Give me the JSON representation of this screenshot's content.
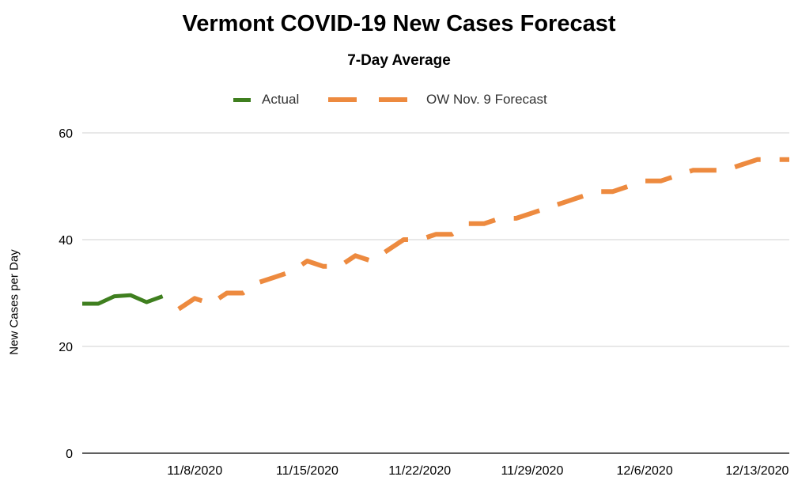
{
  "chart_data": {
    "type": "line",
    "title": "Vermont COVID-19 New Cases Forecast",
    "subtitle": "7-Day Average",
    "xlabel": "",
    "ylabel": "New Cases per Day",
    "ylim": [
      0,
      60
    ],
    "yticks": [
      "0",
      "20",
      "40",
      "60"
    ],
    "xlim": [
      0,
      44
    ],
    "xticks": [
      {
        "day": 7,
        "label": "11/8/2020"
      },
      {
        "day": 14,
        "label": "11/15/2020"
      },
      {
        "day": 21,
        "label": "11/22/2020"
      },
      {
        "day": 28,
        "label": "11/29/2020"
      },
      {
        "day": 35,
        "label": "12/6/2020"
      },
      {
        "day": 42,
        "label": "12/13/2020"
      }
    ],
    "legend_position": "top-center",
    "grid": true,
    "series": [
      {
        "name": "Actual",
        "color": "#3f7f1f",
        "style": "solid",
        "x": [
          0,
          1,
          2,
          3,
          4,
          5
        ],
        "values": [
          28,
          28,
          29.4,
          29.6,
          28.3,
          29.4
        ]
      },
      {
        "name": "OW Nov. 9 Forecast",
        "color": "#ed8a3f",
        "style": "dashed",
        "x": [
          6,
          7,
          8,
          9,
          10,
          11,
          12,
          13,
          14,
          15,
          16,
          17,
          18,
          19,
          20,
          21,
          22,
          23,
          24,
          25,
          26,
          27,
          28,
          29,
          30,
          31,
          32,
          33,
          34,
          35,
          36,
          37,
          38,
          39,
          40,
          41,
          42,
          43,
          44
        ],
        "values": [
          27,
          29,
          28,
          30,
          30,
          32,
          33,
          34,
          36,
          35,
          35,
          37,
          36,
          38,
          40,
          40,
          41,
          41,
          43,
          43,
          44,
          44,
          45,
          46,
          47,
          48,
          49,
          49,
          50,
          51,
          51,
          52,
          53,
          53,
          53,
          54,
          55,
          55,
          55
        ]
      }
    ]
  }
}
